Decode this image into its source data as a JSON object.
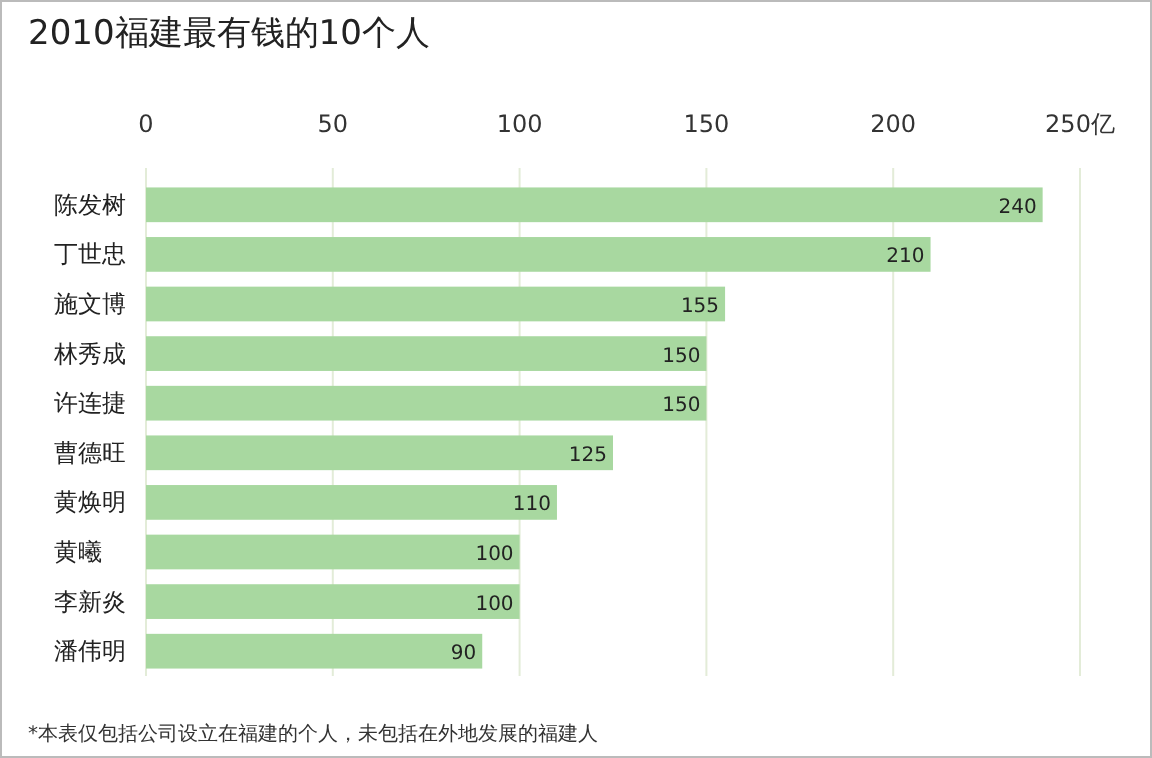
{
  "chart_data": {
    "type": "bar",
    "orientation": "horizontal",
    "title": "2010福建最有钱的10个人",
    "categories": [
      "陈发树",
      "丁世忠",
      "施文博",
      "林秀成",
      "许连捷",
      "曹德旺",
      "黄焕明",
      "黄曦",
      "李新炎",
      "潘伟明"
    ],
    "values": [
      240,
      210,
      155,
      150,
      150,
      125,
      110,
      100,
      100,
      90
    ],
    "color": "#a8d8a0",
    "xlim": [
      0,
      250
    ],
    "xticks": [
      0,
      50,
      100,
      150,
      200,
      {
        "value": 250,
        "label": "250亿"
      }
    ],
    "grid": "x",
    "data_labels": true,
    "annotations": [
      "*本表仅包括公司设立在福建的个人，未包括在外地发展的福建人"
    ]
  }
}
